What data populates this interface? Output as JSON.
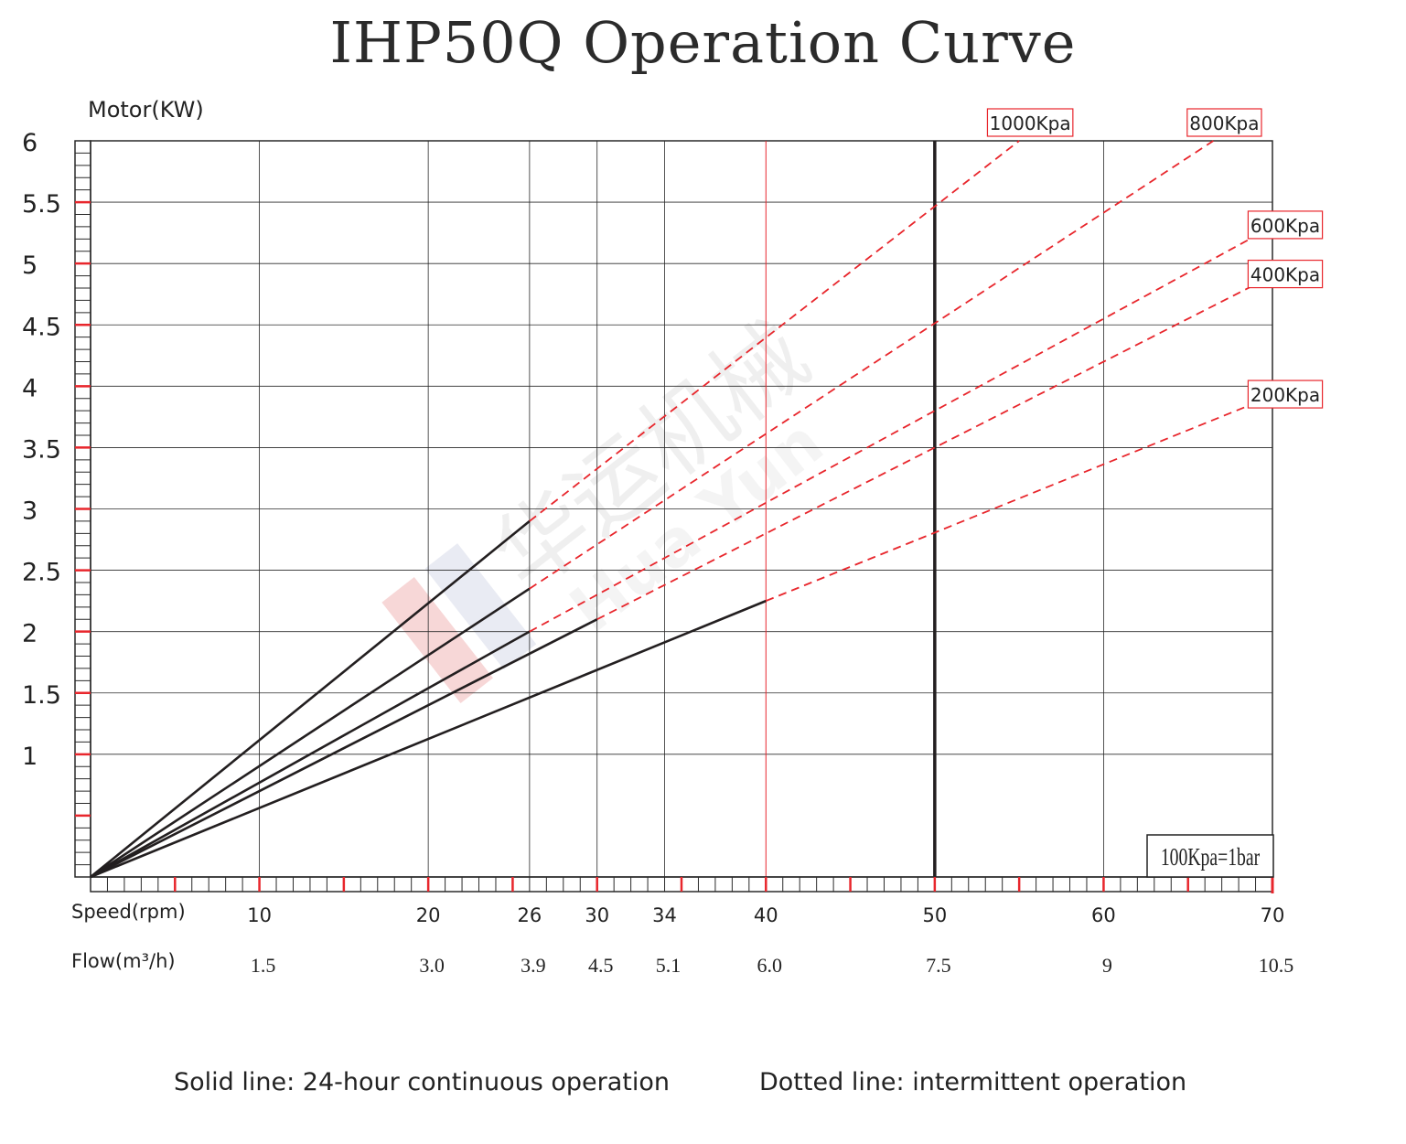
{
  "chart_data": {
    "type": "line",
    "title": "IHP50Q Operation Curve",
    "ylabel": "Motor(KW)",
    "xlabel": "Speed(rpm)",
    "xlabel2": "Flow(m³/h)",
    "ylim": [
      0,
      6
    ],
    "xlim": [
      0,
      70
    ],
    "y_ticks": [
      1,
      1.5,
      2,
      2.5,
      3,
      3.5,
      4,
      4.5,
      5,
      5.5,
      6
    ],
    "y_tick_labels": [
      "1",
      "1.5",
      "2",
      "2.5",
      "3",
      "3.5",
      "4",
      "4.5",
      "5",
      "5.5",
      "6"
    ],
    "x_ticks": [
      10,
      20,
      26,
      30,
      34,
      40,
      50,
      60,
      70
    ],
    "x_tick_labels": [
      "10",
      "20",
      "26",
      "30",
      "34",
      "40",
      "50",
      "60",
      "70"
    ],
    "flow_tick_labels": [
      "1.5",
      "3.0",
      "3.9",
      "4.5",
      "5.1",
      "6.0",
      "7.5",
      "9",
      "10.5"
    ],
    "grid": true,
    "max_speed_line_x": 50,
    "series": [
      {
        "name": "1000Kpa",
        "solid": [
          [
            0,
            0
          ],
          [
            26,
            2.9
          ]
        ],
        "dashed": [
          [
            26,
            2.9
          ],
          [
            55,
            6.0
          ]
        ],
        "label_value": 55
      },
      {
        "name": "800Kpa",
        "solid": [
          [
            0,
            0
          ],
          [
            26,
            2.35
          ]
        ],
        "dashed": [
          [
            26,
            2.35
          ],
          [
            66.5,
            6.0
          ]
        ],
        "label_value": 66.5
      },
      {
        "name": "600Kpa",
        "solid": [
          [
            0,
            0
          ],
          [
            26,
            2.0
          ]
        ],
        "dashed": [
          [
            26,
            2.0
          ],
          [
            70,
            5.3
          ]
        ],
        "label_value": 70
      },
      {
        "name": "400Kpa",
        "solid": [
          [
            0,
            0
          ],
          [
            30,
            2.1
          ]
        ],
        "dashed": [
          [
            30,
            2.1
          ],
          [
            70,
            4.9
          ]
        ],
        "label_value": 70
      },
      {
        "name": "200Kpa",
        "solid": [
          [
            0,
            0
          ],
          [
            40,
            2.25
          ]
        ],
        "dashed": [
          [
            40,
            2.25
          ],
          [
            70,
            3.92
          ]
        ],
        "label_value": 70
      }
    ],
    "annotation": "100Kpa=1bar"
  },
  "captions": {
    "solid": "Solid line: 24-hour continuous operation",
    "dotted": "Dotted line: intermittent operation"
  },
  "watermark": {
    "text_cn": "华运机械",
    "text_en": "Hua Yun"
  },
  "colors": {
    "curve": "#231f20",
    "dashed": "#e8262c",
    "grid": "#2a2a2a",
    "red_grid": "#e8262c",
    "watermark": "#e6e6e6"
  }
}
